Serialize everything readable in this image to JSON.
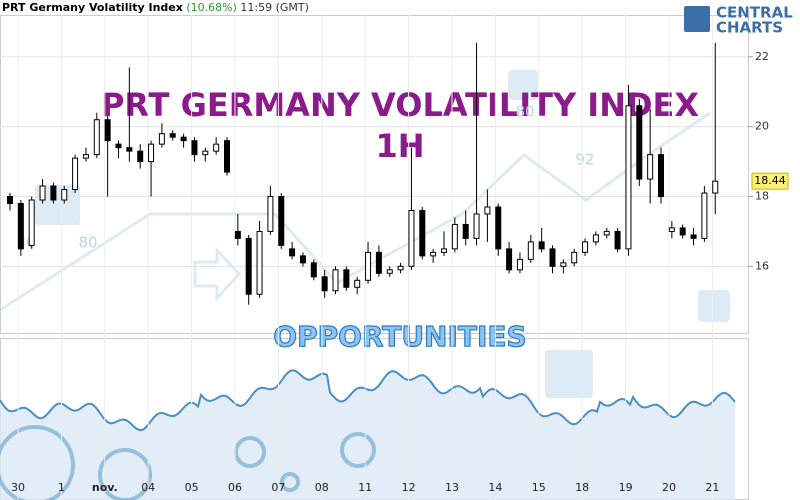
{
  "chart_data": {
    "type": "candlestick",
    "header": {
      "name": "PRT Germany Volatility Index",
      "change": "(10.68%)",
      "time": "11:59 (GMT)"
    },
    "logo": [
      "CENTRAL",
      "CHARTS"
    ],
    "title": "PRT GERMANY VOLATILITY INDEX",
    "subtitle": "1H",
    "watermark": "OPPORTUNITIES",
    "watermark_labels": [
      "30",
      "80",
      "80",
      "92"
    ],
    "categories": [
      "30",
      null,
      null,
      null,
      "1",
      null,
      null,
      null,
      "nov.",
      null,
      null,
      null,
      "04",
      null,
      null,
      null,
      "05",
      null,
      null,
      null,
      "06",
      null,
      null,
      null,
      "07",
      null,
      null,
      null,
      "08",
      null,
      null,
      null,
      "11",
      null,
      null,
      null,
      "12",
      null,
      null,
      null,
      "13",
      null,
      null,
      null,
      "14",
      null,
      null,
      null,
      "15",
      null,
      null,
      null,
      "18",
      null,
      null,
      null,
      "19",
      null,
      null,
      null,
      "20",
      null,
      null,
      null,
      "21",
      null
    ],
    "ohlc": [
      [
        18.0,
        18.1,
        17.6,
        17.8
      ],
      [
        17.8,
        17.9,
        16.3,
        16.5
      ],
      [
        16.6,
        18.0,
        16.5,
        17.9
      ],
      [
        17.9,
        18.5,
        17.8,
        18.3
      ],
      [
        18.3,
        18.4,
        17.8,
        17.9
      ],
      [
        17.9,
        18.3,
        17.8,
        18.2
      ],
      [
        18.2,
        19.2,
        18.1,
        19.1
      ],
      [
        19.1,
        19.4,
        19.0,
        19.2
      ],
      [
        19.2,
        20.4,
        19.1,
        20.2
      ],
      [
        20.2,
        20.3,
        18.0,
        19.6
      ],
      [
        19.5,
        19.6,
        19.1,
        19.4
      ],
      [
        19.4,
        21.7,
        19.0,
        19.3
      ],
      [
        19.3,
        19.5,
        18.8,
        19.0
      ],
      [
        19.0,
        19.6,
        18.0,
        19.5
      ],
      [
        19.5,
        20.1,
        19.4,
        19.8
      ],
      [
        19.8,
        19.9,
        19.6,
        19.7
      ],
      [
        19.7,
        19.8,
        19.4,
        19.6
      ],
      [
        19.6,
        19.7,
        19.0,
        19.2
      ],
      [
        19.2,
        19.4,
        19.0,
        19.3
      ],
      [
        19.3,
        19.7,
        19.2,
        19.5
      ],
      [
        19.6,
        19.7,
        18.6,
        18.7
      ],
      [
        17.0,
        17.5,
        16.6,
        16.8
      ],
      [
        16.8,
        16.9,
        14.9,
        15.2
      ],
      [
        15.2,
        17.3,
        15.1,
        17.0
      ],
      [
        17.0,
        18.3,
        16.9,
        18.0
      ],
      [
        18.0,
        18.1,
        16.5,
        16.6
      ],
      [
        16.5,
        16.7,
        16.2,
        16.3
      ],
      [
        16.3,
        16.4,
        16.0,
        16.1
      ],
      [
        16.1,
        16.2,
        15.6,
        15.7
      ],
      [
        15.7,
        15.9,
        15.1,
        15.3
      ],
      [
        15.3,
        16.0,
        15.2,
        15.9
      ],
      [
        15.9,
        16.0,
        15.3,
        15.4
      ],
      [
        15.4,
        15.7,
        15.2,
        15.6
      ],
      [
        15.6,
        16.7,
        15.5,
        16.4
      ],
      [
        16.4,
        16.6,
        15.7,
        15.8
      ],
      [
        15.8,
        16.0,
        15.7,
        15.9
      ],
      [
        15.9,
        16.1,
        15.8,
        16.0
      ],
      [
        16.0,
        19.4,
        15.9,
        17.6
      ],
      [
        17.6,
        17.7,
        16.2,
        16.3
      ],
      [
        16.3,
        16.5,
        16.1,
        16.4
      ],
      [
        16.4,
        17.0,
        16.3,
        16.5
      ],
      [
        16.5,
        17.4,
        16.4,
        17.2
      ],
      [
        17.2,
        17.6,
        16.6,
        16.8
      ],
      [
        16.8,
        22.4,
        16.6,
        17.5
      ],
      [
        17.5,
        18.2,
        16.7,
        17.7
      ],
      [
        17.7,
        17.8,
        16.3,
        16.5
      ],
      [
        16.5,
        16.7,
        15.8,
        15.9
      ],
      [
        15.9,
        16.4,
        15.8,
        16.2
      ],
      [
        16.2,
        16.9,
        16.1,
        16.7
      ],
      [
        16.7,
        17.1,
        16.4,
        16.5
      ],
      [
        16.5,
        16.6,
        15.8,
        16.0
      ],
      [
        16.0,
        16.2,
        15.8,
        16.1
      ],
      [
        16.1,
        16.5,
        16.0,
        16.4
      ],
      [
        16.4,
        16.8,
        16.3,
        16.7
      ],
      [
        16.7,
        17.0,
        16.6,
        16.9
      ],
      [
        16.9,
        17.1,
        16.8,
        17.0
      ],
      [
        17.0,
        17.1,
        16.4,
        16.5
      ],
      [
        16.5,
        21.2,
        16.3,
        20.6
      ],
      [
        20.6,
        20.8,
        18.3,
        18.5
      ],
      [
        18.5,
        20.5,
        17.8,
        19.2
      ],
      [
        19.2,
        19.4,
        17.8,
        18.0
      ],
      [
        17.0,
        17.3,
        16.8,
        17.1
      ],
      [
        17.1,
        17.2,
        16.8,
        16.9
      ],
      [
        16.9,
        17.1,
        16.6,
        16.8
      ],
      [
        16.8,
        18.3,
        16.7,
        18.1
      ],
      [
        18.1,
        22.4,
        17.5,
        18.44
      ]
    ],
    "last_price": 18.44,
    "ylim": [
      14.09,
      23.63
    ],
    "yticks": [
      16,
      18,
      20,
      22
    ],
    "grid": true
  }
}
